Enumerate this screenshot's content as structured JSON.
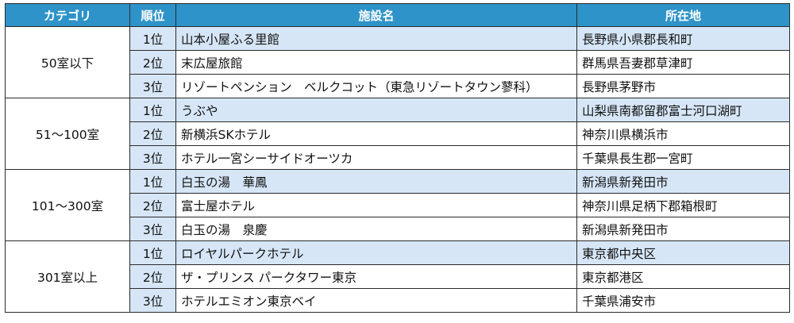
{
  "headers": {
    "category": "カテゴリ",
    "rank": "順位",
    "facility": "施設名",
    "location": "所在地"
  },
  "groups": [
    {
      "category": "50室以下",
      "rows": [
        {
          "rank": "1位",
          "facility": "山本小屋ふる里館",
          "location": "長野県小県郡長和町"
        },
        {
          "rank": "2位",
          "facility": "末広屋旅館",
          "location": "群馬県吾妻郡草津町"
        },
        {
          "rank": "3位",
          "facility": "リゾートペンション　ベルクコット（東急リゾートタウン蓼科）",
          "location": "長野県茅野市"
        }
      ]
    },
    {
      "category": "51～100室",
      "rows": [
        {
          "rank": "1位",
          "facility": "うぶや",
          "location": "山梨県南都留郡富士河口湖町"
        },
        {
          "rank": "2位",
          "facility": "新横浜SKホテル",
          "location": "神奈川県横浜市"
        },
        {
          "rank": "3位",
          "facility": "ホテル一宮シーサイドオーツカ",
          "location": "千葉県長生郡一宮町"
        }
      ]
    },
    {
      "category": "101～300室",
      "rows": [
        {
          "rank": "1位",
          "facility": "白玉の湯　華鳳",
          "location": "新潟県新発田市"
        },
        {
          "rank": "2位",
          "facility": "富士屋ホテル",
          "location": "神奈川県足柄下郡箱根町"
        },
        {
          "rank": "3位",
          "facility": "白玉の湯　泉慶",
          "location": "新潟県新発田市"
        }
      ]
    },
    {
      "category": "301室以上",
      "rows": [
        {
          "rank": "1位",
          "facility": "ロイヤルパークホテル",
          "location": "東京都中央区"
        },
        {
          "rank": "2位",
          "facility": "ザ・プリンス パークタワー東京",
          "location": "東京都港区"
        },
        {
          "rank": "3位",
          "facility": "ホテルエミオン東京ベイ",
          "location": "千葉県浦安市"
        }
      ]
    }
  ]
}
